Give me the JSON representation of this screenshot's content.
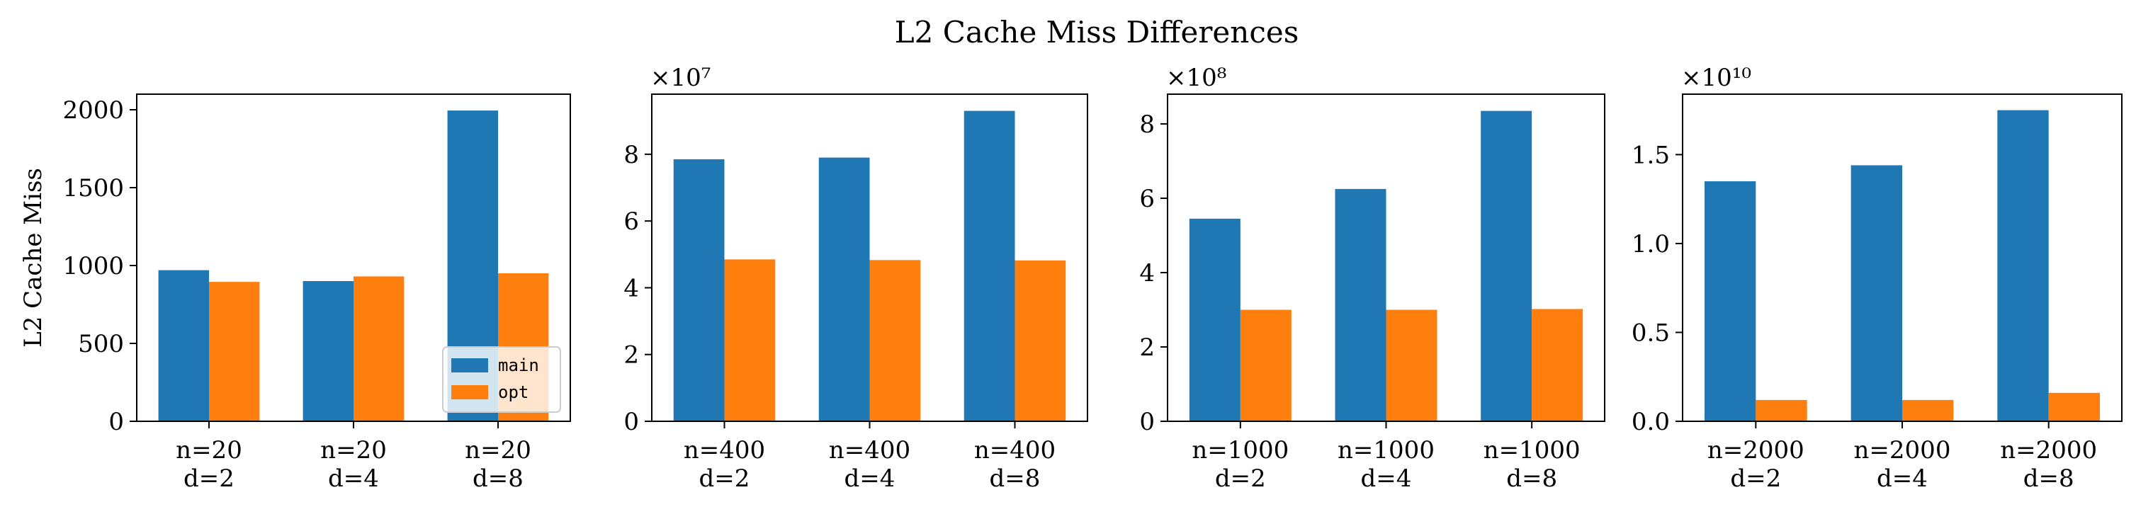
{
  "title": "L2 Cache Miss Differences",
  "colors": {
    "main": "#1f77b4",
    "opt": "#ff7f0e"
  },
  "legend": {
    "placement": "lower-right",
    "entries": [
      "main",
      "opt"
    ]
  },
  "chart_data": [
    {
      "type": "bar",
      "categories": [
        "n=20\nd=2",
        "n=20\nd=4",
        "n=20\nd=8"
      ],
      "ylabel": "L2 Cache Miss",
      "multiplier": "",
      "ylim": [
        0,
        2100
      ],
      "yticks": [
        0,
        500,
        1000,
        1500,
        2000
      ],
      "ytick_labels": [
        "0",
        "500",
        "1000",
        "1500",
        "2000"
      ],
      "series": [
        {
          "name": "main",
          "values": [
            970,
            900,
            1995
          ]
        },
        {
          "name": "opt",
          "values": [
            895,
            930,
            950
          ]
        }
      ]
    },
    {
      "type": "bar",
      "categories": [
        "n=400\nd=2",
        "n=400\nd=4",
        "n=400\nd=8"
      ],
      "ylabel": "",
      "multiplier": "×10⁷",
      "ylim": [
        0,
        9.8
      ],
      "yticks": [
        0,
        2,
        4,
        6,
        8
      ],
      "ytick_labels": [
        "0",
        "2",
        "4",
        "6",
        "8"
      ],
      "series": [
        {
          "name": "main",
          "values": [
            7.85,
            7.9,
            9.3
          ]
        },
        {
          "name": "opt",
          "values": [
            4.85,
            4.83,
            4.82
          ]
        }
      ]
    },
    {
      "type": "bar",
      "categories": [
        "n=1000\nd=2",
        "n=1000\nd=4",
        "n=1000\nd=8"
      ],
      "ylabel": "",
      "multiplier": "×10⁸",
      "ylim": [
        0,
        8.8
      ],
      "yticks": [
        0,
        2,
        4,
        6,
        8
      ],
      "ytick_labels": [
        "0",
        "2",
        "4",
        "6",
        "8"
      ],
      "series": [
        {
          "name": "main",
          "values": [
            5.45,
            6.25,
            8.35
          ]
        },
        {
          "name": "opt",
          "values": [
            3.0,
            3.0,
            3.02
          ]
        }
      ]
    },
    {
      "type": "bar",
      "categories": [
        "n=2000\nd=2",
        "n=2000\nd=4",
        "n=2000\nd=8"
      ],
      "ylabel": "",
      "multiplier": "×10¹⁰",
      "ylim": [
        0,
        1.84
      ],
      "yticks": [
        0,
        0.5,
        1.0,
        1.5
      ],
      "ytick_labels": [
        "0.0",
        "0.5",
        "1.0",
        "1.5"
      ],
      "series": [
        {
          "name": "main",
          "values": [
            1.35,
            1.44,
            1.75
          ]
        },
        {
          "name": "opt",
          "values": [
            0.12,
            0.12,
            0.16
          ]
        }
      ]
    }
  ]
}
